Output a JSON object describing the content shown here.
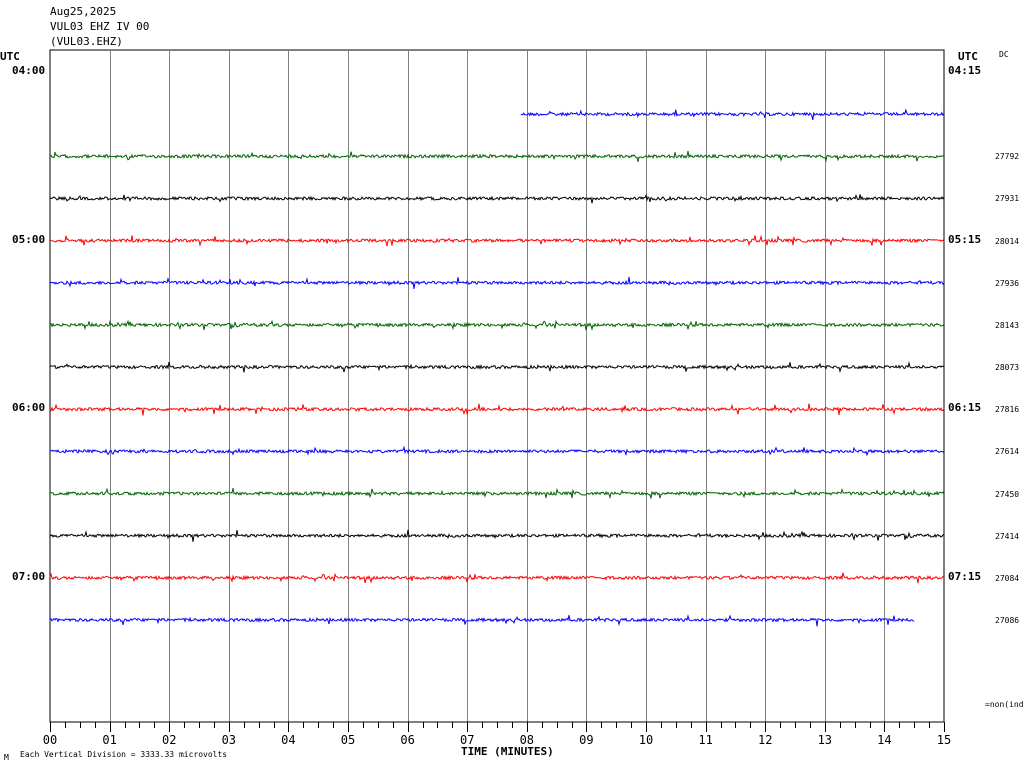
{
  "header": {
    "date": "Aug25,2025",
    "station": "VUL03 EHZ IV 00",
    "channel": "(VUL03.EHZ)"
  },
  "labels": {
    "utc_left": "UTC",
    "utc_right": "UTC",
    "dc": "DC",
    "xaxis_title": "TIME (MINUTES)",
    "footer": "Each Vertical Division = 3333.33 microvolts",
    "footer_mark": "M",
    "non_ind": "=non(ind"
  },
  "chart_data": {
    "type": "line",
    "title": "VUL03 EHZ IV 00",
    "xlabel": "TIME (MINUTES)",
    "ylabel": "",
    "xlim": [
      0,
      15
    ],
    "x_ticks": [
      "00",
      "01",
      "02",
      "03",
      "04",
      "05",
      "06",
      "07",
      "08",
      "09",
      "10",
      "11",
      "12",
      "13",
      "14",
      "15"
    ],
    "grid": true,
    "left_time_labels": [
      "04:00",
      "05:00",
      "06:00",
      "07:00"
    ],
    "right_time_labels": [
      "04:15",
      "05:15",
      "06:15",
      "07:15"
    ],
    "traces": [
      {
        "start_min": 7.9,
        "end_min": 15.0,
        "color": "#0000ff",
        "dc": ""
      },
      {
        "start_min": 0.0,
        "end_min": 15.0,
        "color": "#006400",
        "dc": "27792"
      },
      {
        "start_min": 0.0,
        "end_min": 15.0,
        "color": "#000000",
        "dc": "27931"
      },
      {
        "start_min": 0.0,
        "end_min": 15.0,
        "color": "#ff0000",
        "dc": "28014"
      },
      {
        "start_min": 0.0,
        "end_min": 15.0,
        "color": "#0000ff",
        "dc": "27936"
      },
      {
        "start_min": 0.0,
        "end_min": 15.0,
        "color": "#006400",
        "dc": "28143"
      },
      {
        "start_min": 0.0,
        "end_min": 15.0,
        "color": "#000000",
        "dc": "28073"
      },
      {
        "start_min": 0.0,
        "end_min": 15.0,
        "color": "#ff0000",
        "dc": "27816"
      },
      {
        "start_min": 0.0,
        "end_min": 15.0,
        "color": "#0000ff",
        "dc": "27614"
      },
      {
        "start_min": 0.0,
        "end_min": 15.0,
        "color": "#006400",
        "dc": "27450"
      },
      {
        "start_min": 0.0,
        "end_min": 15.0,
        "color": "#000000",
        "dc": "27414"
      },
      {
        "start_min": 0.0,
        "end_min": 15.0,
        "color": "#ff0000",
        "dc": "27084"
      },
      {
        "start_min": 0.0,
        "end_min": 14.5,
        "color": "#0000ff",
        "dc": "27086"
      }
    ]
  }
}
